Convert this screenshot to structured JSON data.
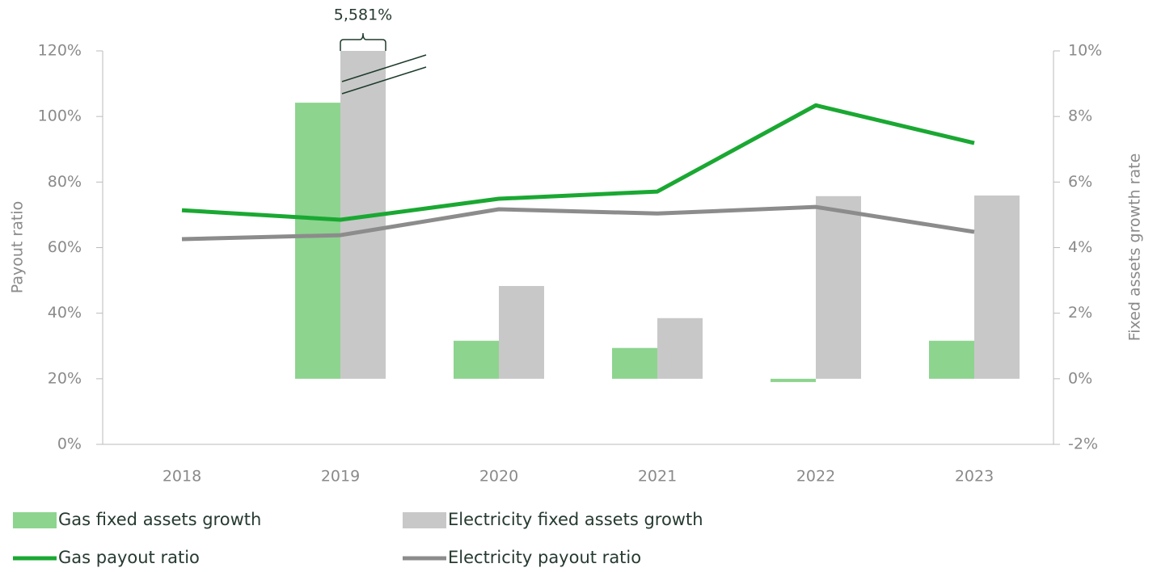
{
  "chart_data": {
    "type": "bar-line",
    "categories": [
      "2018",
      "2019",
      "2020",
      "2021",
      "2022",
      "2023"
    ],
    "y_label": "Payout ratio",
    "y2_label": "Fixed assets growth rate",
    "ylim": [
      0,
      120
    ],
    "yticks": [
      {
        "value": 0,
        "label": "0%"
      },
      {
        "value": 20,
        "label": "20%"
      },
      {
        "value": 40,
        "label": "40%"
      },
      {
        "value": 60,
        "label": "60%"
      },
      {
        "value": 80,
        "label": "80%"
      },
      {
        "value": 100,
        "label": "100%"
      },
      {
        "value": 120,
        "label": "120%"
      }
    ],
    "y2lim": [
      -2,
      10
    ],
    "y2ticks": [
      {
        "value": -2,
        "label": "-2%"
      },
      {
        "value": 0,
        "label": "0%"
      },
      {
        "value": 2,
        "label": "2%"
      },
      {
        "value": 4,
        "label": "4%"
      },
      {
        "value": 6,
        "label": "6%"
      },
      {
        "value": 8,
        "label": "8%"
      },
      {
        "value": 10,
        "label": "10%"
      }
    ],
    "series": [
      {
        "name": "Gas fixed assets growth",
        "type": "bar",
        "axis": "y2",
        "color": "#8dd48f",
        "values": [
          null,
          8.42,
          1.16,
          0.94,
          -0.1,
          1.16
        ]
      },
      {
        "name": "Electricity fixed assets growth",
        "type": "bar",
        "axis": "y2",
        "color": "#c8c8c8",
        "values": [
          null,
          5581,
          2.83,
          1.85,
          5.57,
          5.59
        ],
        "value_labels": [
          null,
          "5,581%",
          null,
          null,
          null,
          null
        ]
      },
      {
        "name": "Gas payout ratio",
        "type": "line",
        "axis": "y",
        "color": "#1aa832",
        "values": [
          71.4,
          68.5,
          74.9,
          77.1,
          103.4,
          91.9
        ]
      },
      {
        "name": "Electricity payout ratio",
        "type": "line",
        "axis": "y",
        "color": "#8c8c8c",
        "values": [
          62.6,
          63.8,
          71.7,
          70.4,
          72.4,
          64.8
        ]
      }
    ]
  }
}
